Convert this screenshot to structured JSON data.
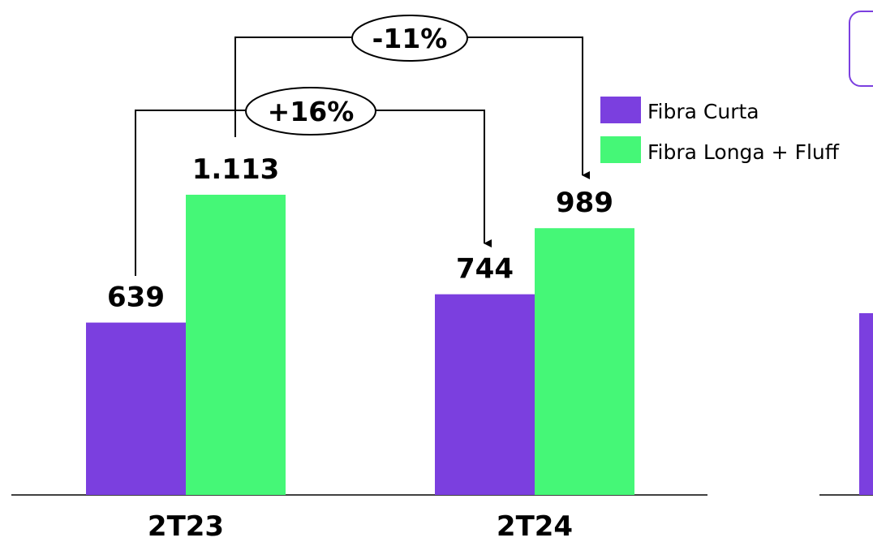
{
  "chart_data": {
    "type": "bar",
    "categories": [
      "2T23",
      "2T24"
    ],
    "series": [
      {
        "name": "Fibra Curta",
        "color": "#7B3FDF",
        "values": [
          639,
          744
        ],
        "labels": [
          "639",
          "744"
        ]
      },
      {
        "name": "Fibra Longa + Fluff",
        "color": "#45F777",
        "values": [
          1113,
          989
        ],
        "labels": [
          "1.113",
          "989"
        ]
      }
    ],
    "ylim": [
      0,
      1300
    ],
    "grid": false,
    "legend_position": "top-right",
    "annotations": [
      {
        "label": "-11%",
        "from": {
          "series": 1,
          "category": 0
        },
        "to": {
          "series": 1,
          "category": 1
        }
      },
      {
        "label": "+16%",
        "from": {
          "series": 0,
          "category": 0
        },
        "to": {
          "series": 0,
          "category": 1
        }
      }
    ],
    "partial_second_chart": {
      "bar_color": "#7B3FDF",
      "box_border_color": "#7B3FDF"
    }
  }
}
